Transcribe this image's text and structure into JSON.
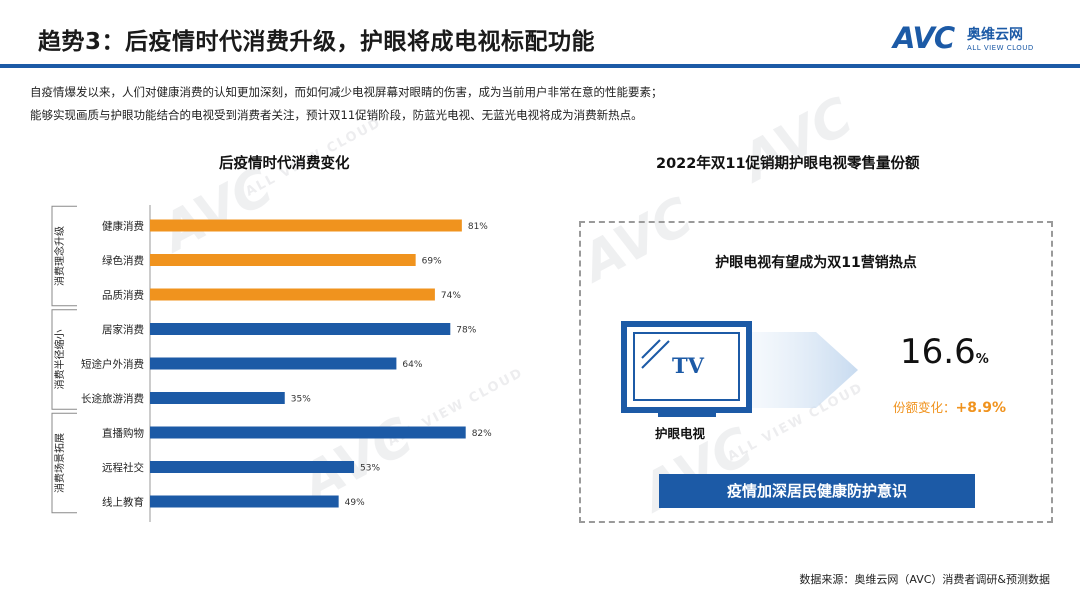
{
  "header": {
    "title": "趋势3：后疫情时代消费升级，护眼将成电视标配功能",
    "logo_cn": "奥维云网",
    "logo_en": "ALL VIEW CLOUD",
    "logo_mark": "AVC"
  },
  "intro": [
    "自疫情爆发以来，人们对健康消费的认知更加深刻，而如何减少电视屏幕对眼睛的伤害，成为当前用户非常在意的性能要素；",
    "能够实现画质与护眼功能结合的电视受到消费者关注，预计双11促销阶段，防蓝光电视、无蓝光电视将成为消费新热点。"
  ],
  "left_panel": {
    "title": "后疫情时代消费变化"
  },
  "right_panel": {
    "title": "2022年双11促销期护眼电视零售量份额",
    "heading": "护眼电视有望成为双11营销热点",
    "tv_screen_text": "TV",
    "tv_label": "护眼电视",
    "share_value": "16.6",
    "share_unit": "%",
    "change_label": "份额变化：",
    "change_value": "+8.9%",
    "banner": "疫情加深居民健康防护意识"
  },
  "watermark": {
    "mark": "AVC",
    "sub": "ALL VIEW CLOUD"
  },
  "source": "数据来源：奥维云网（AVC）消费者调研&预测数据",
  "colors": {
    "orange": "#F0931E",
    "blue": "#1C5AA6",
    "rule": "#1C5AA6"
  },
  "chart_data": {
    "type": "bar",
    "orientation": "horizontal",
    "title": "后疫情时代消费变化",
    "xlim": [
      0,
      100
    ],
    "unit": "%",
    "groups": [
      {
        "label": "消费理念升级",
        "color": "#F0931E",
        "categories": [
          "健康消费",
          "绿色消费",
          "品质消费"
        ],
        "values": [
          81,
          69,
          74
        ]
      },
      {
        "label": "消费半径缩小",
        "color": "#1C5AA6",
        "categories": [
          "居家消费",
          "短途户外消费",
          "长途旅游消费"
        ],
        "values": [
          78,
          64,
          35
        ]
      },
      {
        "label": "消费场景拓展",
        "color": "#1C5AA6",
        "categories": [
          "直播购物",
          "远程社交",
          "线上教育"
        ],
        "values": [
          82,
          53,
          49
        ]
      }
    ]
  }
}
